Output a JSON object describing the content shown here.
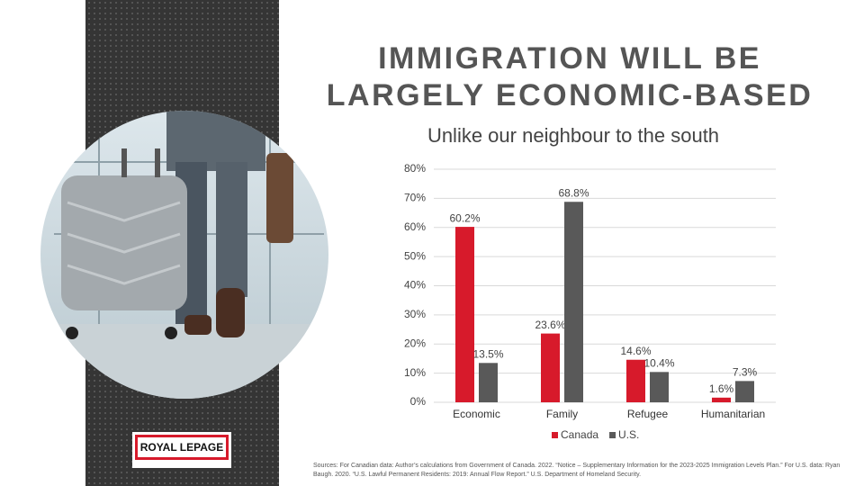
{
  "chart_data": {
    "type": "bar",
    "title": [
      "IMMIGRATION WILL BE",
      "LARGELY ECONOMIC-BASED"
    ],
    "subtitle": "Unlike our neighbour to the south",
    "categories": [
      "Economic",
      "Family",
      "Refugee",
      "Humanitarian"
    ],
    "series": [
      {
        "name": "Canada",
        "color": "#d71a2b",
        "values": [
          60.2,
          23.6,
          14.6,
          1.6
        ],
        "value_labels": [
          "60.2%",
          "23.6%",
          "14.6%",
          "1.6%"
        ]
      },
      {
        "name": "U.S.",
        "color": "#595959",
        "values": [
          13.5,
          68.8,
          10.4,
          7.3
        ],
        "value_labels": [
          "13.5%",
          "68.8%",
          "10.4%",
          "7.3%"
        ]
      }
    ],
    "ylim": [
      0,
      80
    ],
    "yticks": [
      {
        "value": 0,
        "label": "0%"
      },
      {
        "value": 10,
        "label": "10%"
      },
      {
        "value": 20,
        "label": "20%"
      },
      {
        "value": 30,
        "label": "30%"
      },
      {
        "value": 40,
        "label": "40%"
      },
      {
        "value": 50,
        "label": "50%"
      },
      {
        "value": 60,
        "label": "60%"
      },
      {
        "value": 70,
        "label": "70%"
      },
      {
        "value": 80,
        "label": "80%"
      }
    ],
    "grid": true,
    "legend": "bottom"
  },
  "logo": "ROYAL LEPAGE",
  "sources": "Sources: For Canadian data: Author’s calculations from Government of Canada. 2022. “Notice – Supplementary Information for the 2023-2025 Immigration Levels Plan.” For U.S. data: Ryan Baugh. 2020. “U.S. Lawful Permanent Residents: 2019: Annual Flow Report.” U.S. Department of Homeland Security."
}
